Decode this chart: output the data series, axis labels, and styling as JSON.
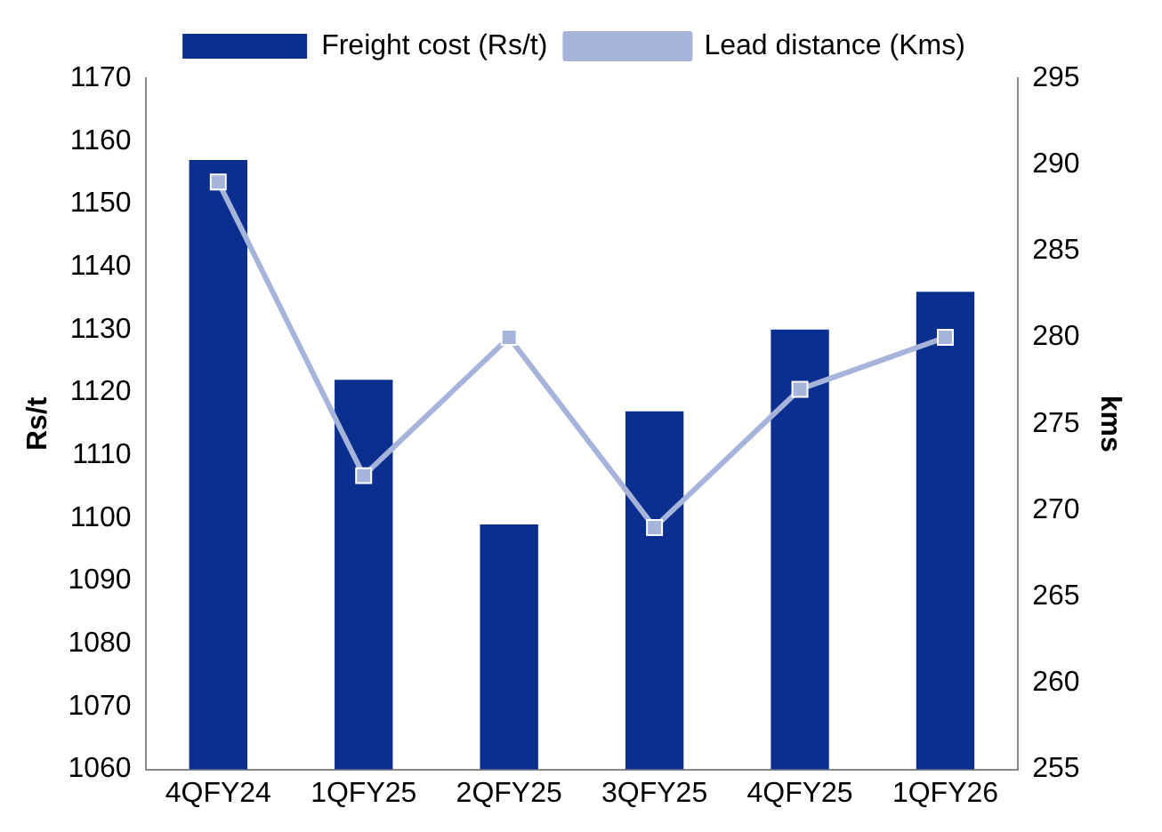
{
  "chart_data": {
    "type": "bar",
    "ylabel": "Rs/t",
    "y2label": "kms",
    "categories": [
      "4QFY24",
      "1QFY25",
      "2QFY25",
      "3QFY25",
      "4QFY25",
      "1QFY26"
    ],
    "series": [
      {
        "name": "Freight cost (Rs/t)",
        "color": "#0b2f8e",
        "values": [
          1157,
          1122,
          1099,
          1117,
          1130,
          1136
        ]
      },
      {
        "name": "Lead distance (Kms)",
        "type": "line",
        "axis": "y2",
        "color": "#a6b3da",
        "values": [
          289,
          272,
          280,
          269,
          277,
          280
        ]
      }
    ],
    "ylim": [
      1060,
      1170
    ],
    "yticks": [
      1060,
      1070,
      1080,
      1090,
      1100,
      1110,
      1120,
      1130,
      1140,
      1150,
      1160,
      1170
    ],
    "y2lim": [
      255,
      295
    ],
    "y2ticks": [
      255,
      260,
      265,
      270,
      275,
      280,
      285,
      290,
      295
    ],
    "grid": false,
    "legend": "top",
    "marker": "square",
    "line_style": "solid"
  }
}
